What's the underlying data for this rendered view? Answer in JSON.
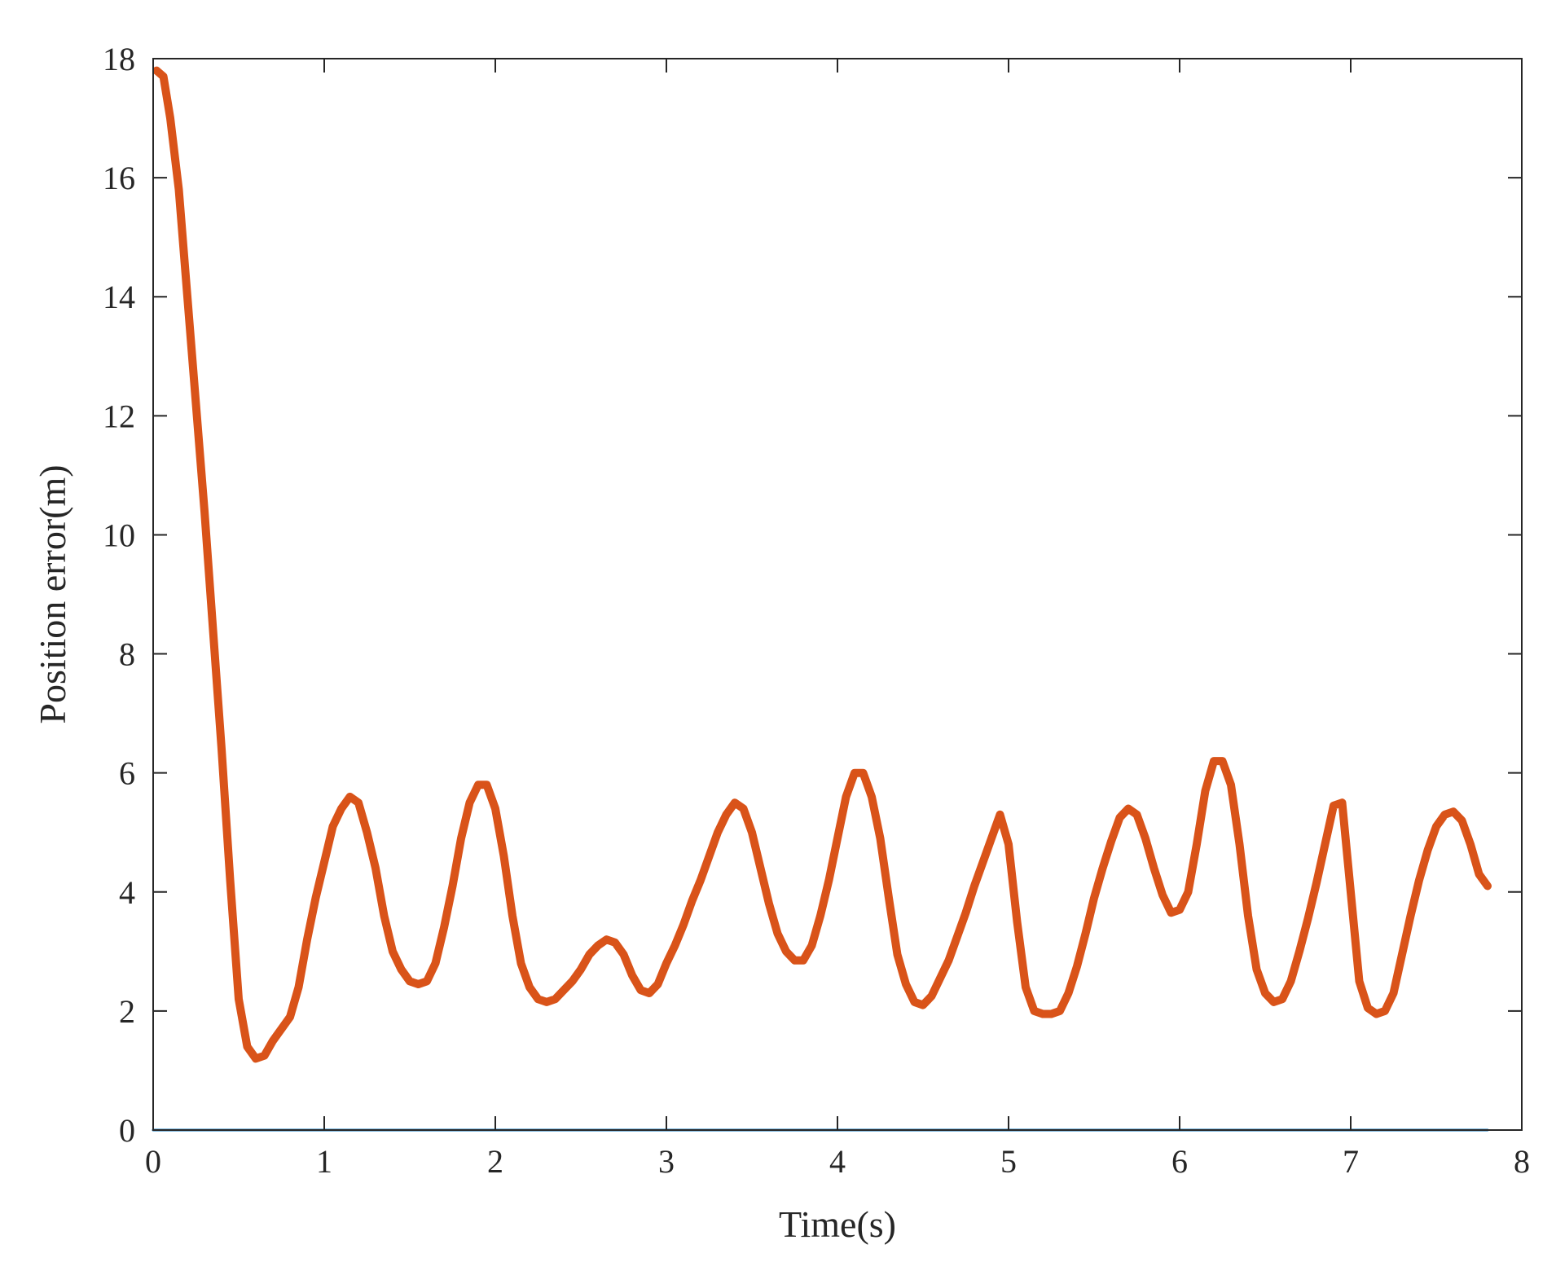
{
  "chart_data": {
    "type": "line",
    "title": "",
    "xlabel": "Time(s)",
    "ylabel": "Position error(m)",
    "xlim": [
      0,
      8
    ],
    "ylim": [
      0,
      18
    ],
    "xticks": [
      0,
      1,
      2,
      3,
      4,
      5,
      6,
      7,
      8
    ],
    "yticks": [
      0,
      2,
      4,
      6,
      8,
      10,
      12,
      14,
      16,
      18
    ],
    "grid": false,
    "legend": "none",
    "series": [
      {
        "color": "#D95319",
        "x": [
          0.02,
          0.06,
          0.1,
          0.15,
          0.2,
          0.25,
          0.3,
          0.35,
          0.4,
          0.45,
          0.5,
          0.55,
          0.6,
          0.65,
          0.7,
          0.75,
          0.8,
          0.85,
          0.9,
          0.95,
          1.0,
          1.05,
          1.1,
          1.15,
          1.2,
          1.25,
          1.3,
          1.35,
          1.4,
          1.45,
          1.5,
          1.55,
          1.6,
          1.65,
          1.7,
          1.75,
          1.8,
          1.85,
          1.9,
          1.95,
          2.0,
          2.05,
          2.1,
          2.15,
          2.2,
          2.25,
          2.3,
          2.35,
          2.4,
          2.45,
          2.5,
          2.55,
          2.6,
          2.65,
          2.7,
          2.75,
          2.8,
          2.85,
          2.9,
          2.95,
          3.0,
          3.05,
          3.1,
          3.15,
          3.2,
          3.25,
          3.3,
          3.35,
          3.4,
          3.45,
          3.5,
          3.55,
          3.6,
          3.65,
          3.7,
          3.75,
          3.8,
          3.85,
          3.9,
          3.95,
          4.0,
          4.05,
          4.1,
          4.15,
          4.2,
          4.25,
          4.3,
          4.35,
          4.4,
          4.45,
          4.5,
          4.55,
          4.6,
          4.65,
          4.7,
          4.75,
          4.8,
          4.85,
          4.9,
          4.95,
          5.0,
          5.05,
          5.1,
          5.15,
          5.2,
          5.25,
          5.3,
          5.35,
          5.4,
          5.45,
          5.5,
          5.55,
          5.6,
          5.65,
          5.7,
          5.75,
          5.8,
          5.85,
          5.9,
          5.95,
          6.0,
          6.05,
          6.1,
          6.15,
          6.2,
          6.25,
          6.3,
          6.35,
          6.4,
          6.45,
          6.5,
          6.55,
          6.6,
          6.65,
          6.7,
          6.75,
          6.8,
          6.85,
          6.9,
          6.95,
          7.0,
          7.05,
          7.1,
          7.15,
          7.2,
          7.25,
          7.3,
          7.35,
          7.4,
          7.45,
          7.5,
          7.55,
          7.6,
          7.65,
          7.7,
          7.75,
          7.8
        ],
        "y": [
          17.8,
          17.7,
          17.0,
          15.8,
          14.0,
          12.2,
          10.4,
          8.4,
          6.4,
          4.2,
          2.2,
          1.4,
          1.2,
          1.25,
          1.5,
          1.7,
          1.9,
          2.4,
          3.2,
          3.9,
          4.5,
          5.1,
          5.4,
          5.6,
          5.5,
          5.0,
          4.4,
          3.6,
          3.0,
          2.7,
          2.5,
          2.45,
          2.5,
          2.8,
          3.4,
          4.1,
          4.9,
          5.5,
          5.8,
          5.8,
          5.4,
          4.6,
          3.6,
          2.8,
          2.4,
          2.2,
          2.15,
          2.2,
          2.35,
          2.5,
          2.7,
          2.95,
          3.1,
          3.2,
          3.15,
          2.95,
          2.6,
          2.35,
          2.3,
          2.45,
          2.8,
          3.1,
          3.45,
          3.85,
          4.2,
          4.6,
          5.0,
          5.3,
          5.5,
          5.4,
          5.0,
          4.4,
          3.8,
          3.3,
          3.0,
          2.85,
          2.85,
          3.1,
          3.6,
          4.2,
          4.9,
          5.6,
          6.0,
          6.0,
          5.6,
          4.9,
          3.9,
          2.95,
          2.45,
          2.15,
          2.1,
          2.25,
          2.55,
          2.85,
          3.25,
          3.65,
          4.1,
          4.5,
          4.9,
          5.3,
          4.8,
          3.5,
          2.4,
          2.0,
          1.95,
          1.95,
          2.0,
          2.3,
          2.75,
          3.3,
          3.9,
          4.4,
          4.85,
          5.25,
          5.4,
          5.3,
          4.9,
          4.4,
          3.95,
          3.65,
          3.7,
          4.0,
          4.8,
          5.7,
          6.2,
          6.2,
          5.8,
          4.8,
          3.6,
          2.7,
          2.3,
          2.15,
          2.2,
          2.5,
          3.0,
          3.55,
          4.15,
          4.8,
          5.45,
          5.5,
          4.0,
          2.5,
          2.05,
          1.95,
          2.0,
          2.3,
          2.95,
          3.6,
          4.2,
          4.7,
          5.1,
          5.3,
          5.35,
          5.2,
          4.8,
          4.3,
          4.1
        ]
      },
      {
        "color": "#0072BD",
        "x": [
          0,
          7.8
        ],
        "y": [
          0,
          0
        ]
      }
    ]
  }
}
